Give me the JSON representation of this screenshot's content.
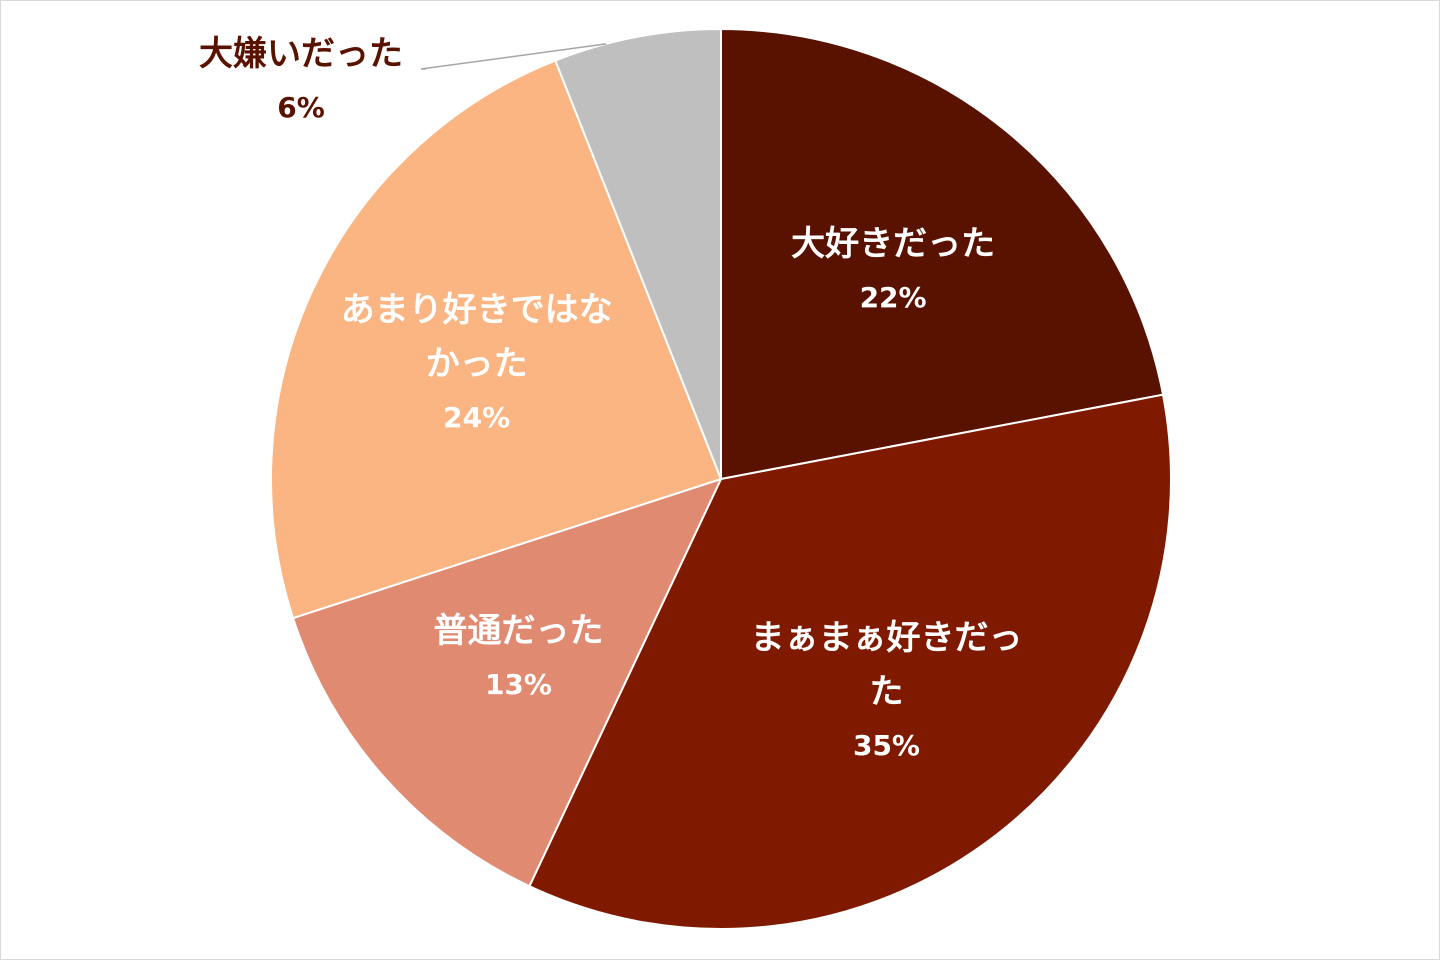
{
  "chart_data": {
    "type": "pie",
    "categories": [
      "大好きだった",
      "まぁまぁ好きだった",
      "普通だった",
      "あまり好きではなかった",
      "大嫌いだった"
    ],
    "values": [
      22,
      35,
      13,
      24,
      6
    ],
    "value_labels": [
      "22%",
      "35%",
      "13%",
      "24%",
      "6%"
    ],
    "colors": [
      "#5a1200",
      "#7f1a00",
      "#e08a72",
      "#fbb583",
      "#bfbfbf"
    ]
  }
}
